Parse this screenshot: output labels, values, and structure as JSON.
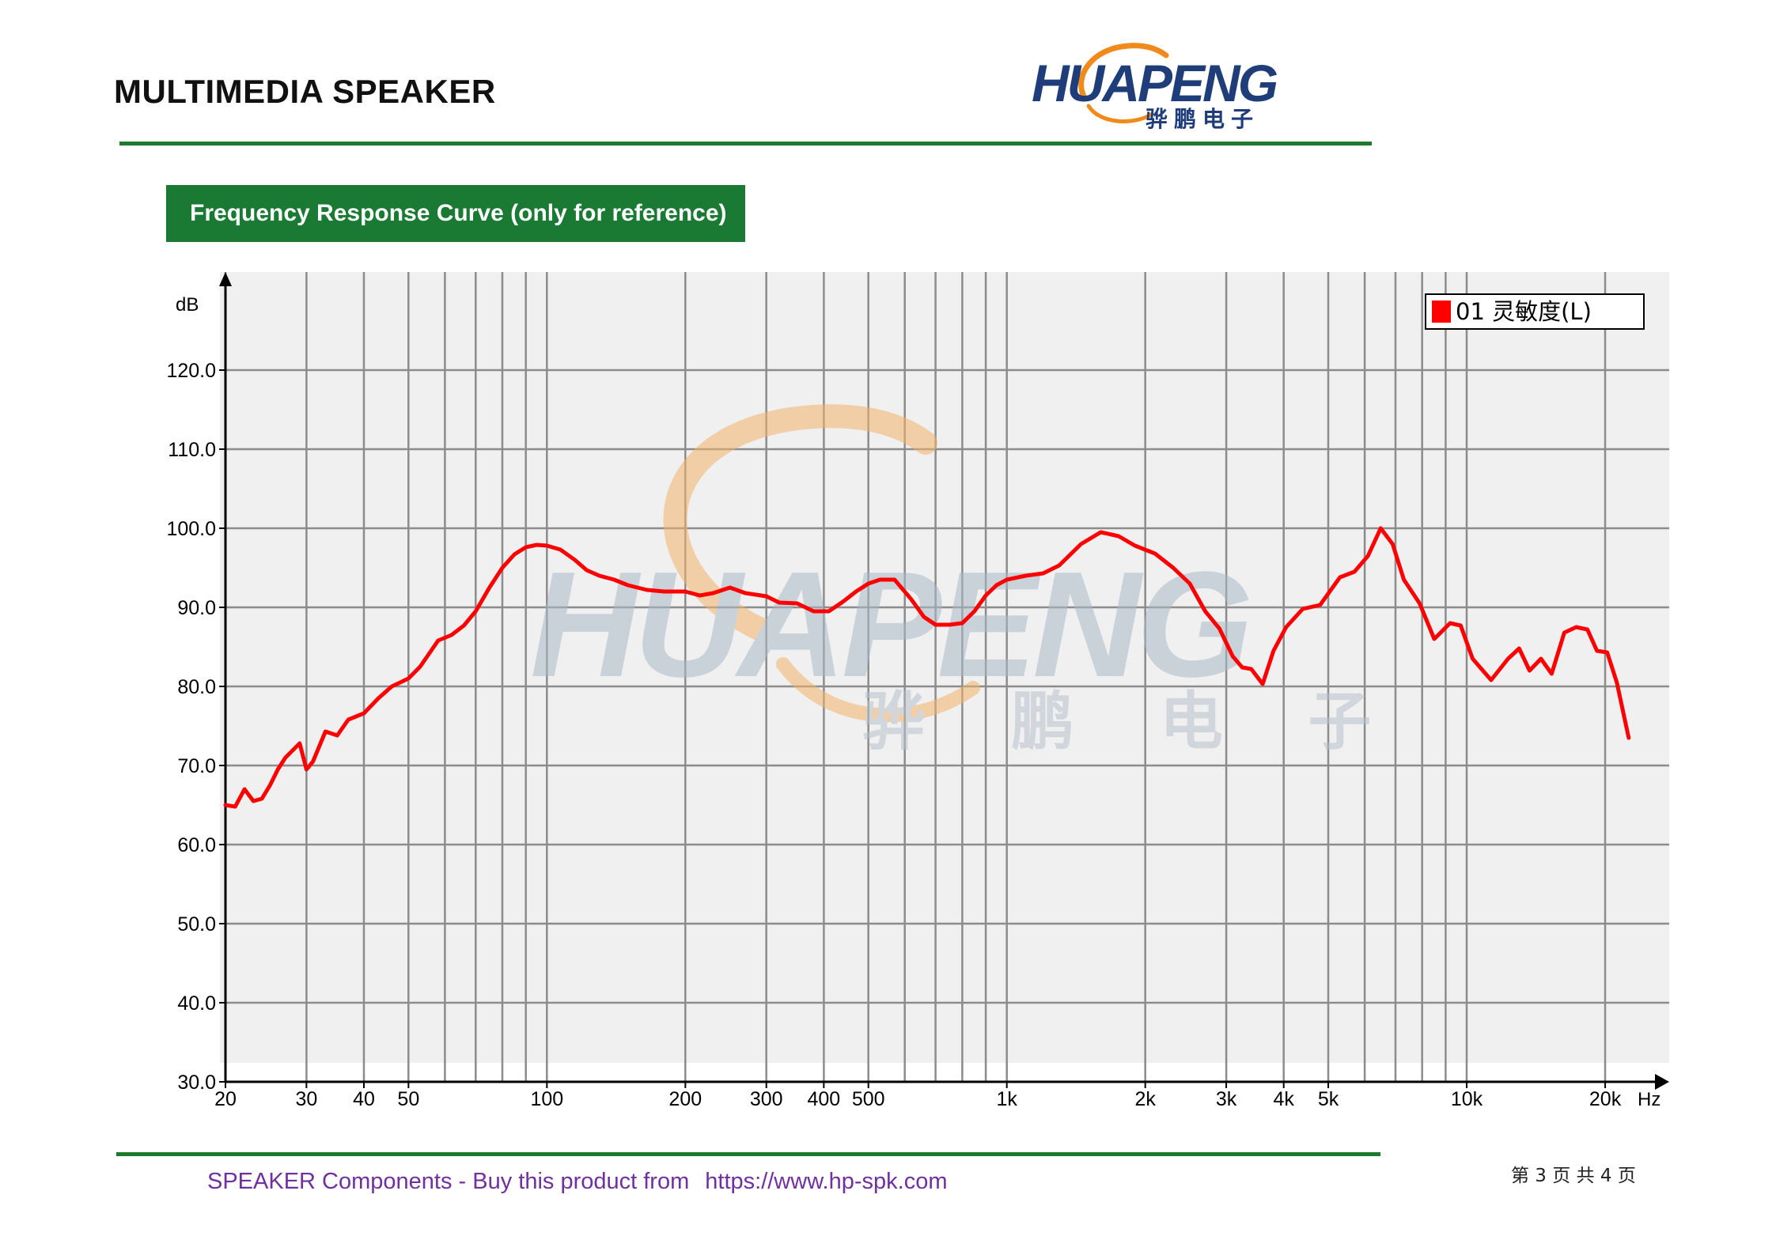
{
  "header": {
    "title": "MULTIMEDIA SPEAKER",
    "logo_text_en": "HUAPENG",
    "logo_text_cn": "骅鹏电子"
  },
  "section": {
    "label": "Frequency Response Curve (only for reference)"
  },
  "watermark": {
    "text_en": "HUAPENG",
    "text_cn": "骅 鹏 电 子"
  },
  "chart_data": {
    "type": "line",
    "ylabel": "dB",
    "xlabel": "Hz",
    "x_scale": "log",
    "xlim": [
      20,
      28000
    ],
    "ylim": [
      30,
      130
    ],
    "grid": true,
    "legend_position": "top-right",
    "y_ticks": [
      "30.0",
      "40.0",
      "50.0",
      "60.0",
      "70.0",
      "80.0",
      "90.0",
      "100.0",
      "110.0",
      "120.0"
    ],
    "y_tick_values": [
      30,
      40,
      50,
      60,
      70,
      80,
      90,
      100,
      110,
      120
    ],
    "x_ticks": [
      {
        "v": 20,
        "label": "20"
      },
      {
        "v": 30,
        "label": "30"
      },
      {
        "v": 40,
        "label": "40"
      },
      {
        "v": 50,
        "label": "50"
      },
      {
        "v": 100,
        "label": "100"
      },
      {
        "v": 200,
        "label": "200"
      },
      {
        "v": 300,
        "label": "300"
      },
      {
        "v": 400,
        "label": "400"
      },
      {
        "v": 500,
        "label": "500"
      },
      {
        "v": 1000,
        "label": "1k"
      },
      {
        "v": 2000,
        "label": "2k"
      },
      {
        "v": 3000,
        "label": "3k"
      },
      {
        "v": 4000,
        "label": "4k"
      },
      {
        "v": 5000,
        "label": "5k"
      },
      {
        "v": 10000,
        "label": "10k"
      },
      {
        "v": 20000,
        "label": "20k"
      }
    ],
    "grid_x": [
      20,
      30,
      40,
      50,
      60,
      70,
      80,
      90,
      100,
      200,
      300,
      400,
      500,
      600,
      700,
      800,
      900,
      1000,
      2000,
      3000,
      4000,
      5000,
      6000,
      7000,
      8000,
      9000,
      10000,
      20000
    ],
    "series": [
      {
        "name": "01 灵敏度(L)",
        "color": "#ff0000",
        "points": [
          [
            20,
            65
          ],
          [
            21,
            64.8
          ],
          [
            22,
            67
          ],
          [
            23,
            65.5
          ],
          [
            24,
            65.8
          ],
          [
            25,
            67.5
          ],
          [
            26,
            69.5
          ],
          [
            27,
            71
          ],
          [
            29,
            72.8
          ],
          [
            30,
            69.5
          ],
          [
            31,
            70.5
          ],
          [
            33,
            74.3
          ],
          [
            35,
            73.8
          ],
          [
            37,
            75.8
          ],
          [
            40,
            76.6
          ],
          [
            43,
            78.5
          ],
          [
            46,
            80
          ],
          [
            50,
            81
          ],
          [
            53,
            82.5
          ],
          [
            58,
            85.8
          ],
          [
            62,
            86.5
          ],
          [
            66,
            87.7
          ],
          [
            70,
            89.5
          ],
          [
            75,
            92.5
          ],
          [
            80,
            95
          ],
          [
            85,
            96.7
          ],
          [
            90,
            97.6
          ],
          [
            95,
            97.9
          ],
          [
            100,
            97.8
          ],
          [
            107,
            97.3
          ],
          [
            115,
            96
          ],
          [
            122,
            94.7
          ],
          [
            130,
            94
          ],
          [
            140,
            93.5
          ],
          [
            150,
            92.8
          ],
          [
            165,
            92.2
          ],
          [
            180,
            92
          ],
          [
            200,
            92
          ],
          [
            215,
            91.5
          ],
          [
            230,
            91.8
          ],
          [
            250,
            92.5
          ],
          [
            270,
            91.8
          ],
          [
            300,
            91.4
          ],
          [
            320,
            90.6
          ],
          [
            350,
            90.5
          ],
          [
            380,
            89.5
          ],
          [
            410,
            89.5
          ],
          [
            440,
            90.7
          ],
          [
            470,
            92
          ],
          [
            500,
            93
          ],
          [
            530,
            93.5
          ],
          [
            570,
            93.5
          ],
          [
            620,
            91
          ],
          [
            660,
            88.8
          ],
          [
            700,
            87.8
          ],
          [
            750,
            87.8
          ],
          [
            800,
            88
          ],
          [
            850,
            89.5
          ],
          [
            900,
            91.5
          ],
          [
            950,
            92.8
          ],
          [
            1000,
            93.5
          ],
          [
            1100,
            94
          ],
          [
            1200,
            94.3
          ],
          [
            1300,
            95.3
          ],
          [
            1450,
            98
          ],
          [
            1600,
            99.5
          ],
          [
            1750,
            99
          ],
          [
            1900,
            97.8
          ],
          [
            2100,
            96.8
          ],
          [
            2300,
            95
          ],
          [
            2500,
            93
          ],
          [
            2700,
            89.5
          ],
          [
            2900,
            87.3
          ],
          [
            3100,
            83.8
          ],
          [
            3250,
            82.4
          ],
          [
            3400,
            82.2
          ],
          [
            3600,
            80.3
          ],
          [
            3800,
            84.5
          ],
          [
            4050,
            87.5
          ],
          [
            4400,
            89.8
          ],
          [
            4800,
            90.3
          ],
          [
            5300,
            93.8
          ],
          [
            5700,
            94.5
          ],
          [
            6100,
            96.5
          ],
          [
            6500,
            100
          ],
          [
            6900,
            98
          ],
          [
            7300,
            93.5
          ],
          [
            7900,
            90.5
          ],
          [
            8500,
            86
          ],
          [
            9200,
            88
          ],
          [
            9700,
            87.7
          ],
          [
            10300,
            83.5
          ],
          [
            11300,
            80.8
          ],
          [
            12300,
            83.5
          ],
          [
            13000,
            84.8
          ],
          [
            13700,
            82
          ],
          [
            14500,
            83.5
          ],
          [
            15300,
            81.6
          ],
          [
            16300,
            86.8
          ],
          [
            17300,
            87.5
          ],
          [
            18300,
            87.2
          ],
          [
            19200,
            84.5
          ],
          [
            20200,
            84.3
          ],
          [
            21200,
            80.5
          ],
          [
            22500,
            73.5
          ]
        ]
      }
    ]
  },
  "footer": {
    "text": "SPEAKER Components - Buy this product from",
    "url": "https://www.hp-spk.com",
    "page": "第 3 页 共 4 页"
  }
}
